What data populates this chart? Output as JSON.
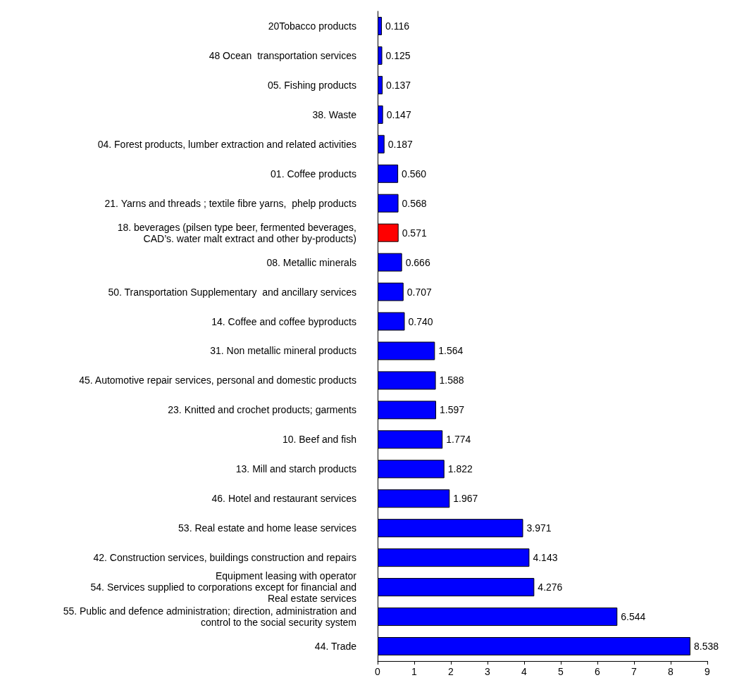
{
  "chart_data": {
    "type": "bar",
    "orientation": "horizontal",
    "categories": [
      "20Tobacco products",
      "48 Ocean  transportation services",
      "05. Fishing products",
      "38. Waste",
      "04. Forest products, lumber extraction and related activities",
      "01. Coffee products",
      "21. Yarns and threads ; textile fibre yarns,  phelp products",
      "18. beverages (pilsen type beer, fermented beverages,\nCAD’s. water malt extract and other by-products)",
      "08. Metallic minerals",
      "50. Transportation Supplementary  and ancillary services",
      "14. Coffee and coffee byproducts",
      "31. Non metallic mineral products",
      "45. Automotive repair services, personal and domestic products",
      "23. Knitted and crochet products; garments",
      "10. Beef and fish",
      "13. Mill and starch products",
      "46. Hotel and restaurant services",
      "53. Real estate and home lease services",
      "42. Construction services, buildings construction and repairs",
      "Equipment leasing with operator\n54. Services supplied to corporations except for financial and\nReal estate services",
      "55. Public and defence administration; direction, administration and\ncontrol to the social security system",
      "44. Trade"
    ],
    "values": [
      0.116,
      0.125,
      0.137,
      0.147,
      0.187,
      0.56,
      0.568,
      0.571,
      0.666,
      0.707,
      0.74,
      1.564,
      1.588,
      1.597,
      1.774,
      1.822,
      1.967,
      3.971,
      4.143,
      4.276,
      6.544,
      8.538
    ],
    "value_labels": [
      "0.116",
      "0.125",
      "0.137",
      "0.147",
      "0.187",
      "0.560",
      "0.568",
      "0.571",
      "0.666",
      "0.707",
      "0.740",
      "1.564",
      "1.588",
      "1.597",
      "1.774",
      "1.822",
      "1.967",
      "3.971",
      "4.143",
      "4.276",
      "6.544",
      "8.538"
    ],
    "colors": [
      "#0000ff",
      "#0000ff",
      "#0000ff",
      "#0000ff",
      "#0000ff",
      "#0000ff",
      "#0000ff",
      "#ff0000",
      "#0000ff",
      "#0000ff",
      "#0000ff",
      "#0000ff",
      "#0000ff",
      "#0000ff",
      "#0000ff",
      "#0000ff",
      "#0000ff",
      "#0000ff",
      "#0000ff",
      "#0000ff",
      "#0000ff",
      "#0000ff"
    ],
    "xlim": [
      0,
      9
    ],
    "xticks": [
      0,
      1,
      2,
      3,
      4,
      5,
      6,
      7,
      8,
      9
    ],
    "grid": false
  }
}
